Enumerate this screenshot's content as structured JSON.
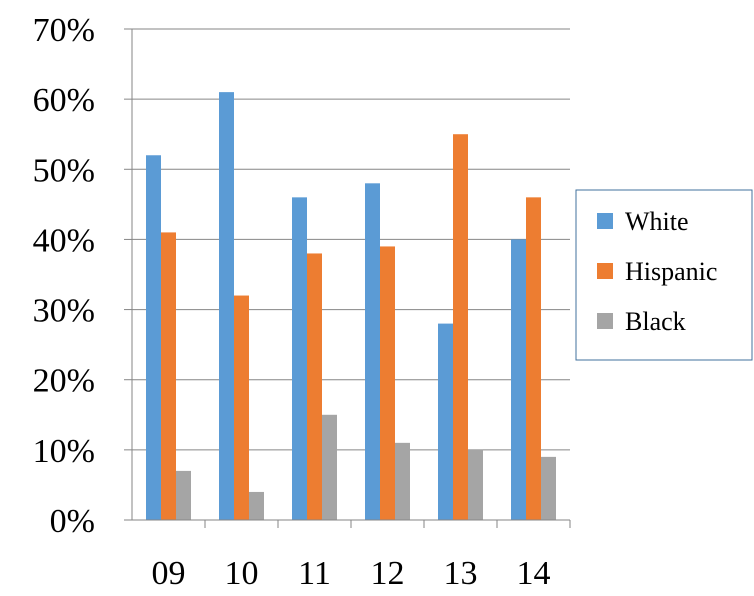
{
  "chart_data": {
    "type": "bar",
    "title": "",
    "xlabel": "",
    "ylabel": "",
    "categories": [
      "09",
      "10",
      "11",
      "12",
      "13",
      "14"
    ],
    "series": [
      {
        "name": "White",
        "values": [
          52,
          61,
          46,
          48,
          28,
          40
        ],
        "color": "#5B9BD5"
      },
      {
        "name": "Hispanic",
        "values": [
          41,
          32,
          38,
          39,
          55,
          46
        ],
        "color": "#ED7D31"
      },
      {
        "name": "Black",
        "values": [
          7,
          4,
          15,
          11,
          10,
          9
        ],
        "color": "#A5A5A5"
      }
    ],
    "ylim": [
      0,
      70
    ],
    "yticks": [
      0,
      10,
      20,
      30,
      40,
      50,
      60,
      70
    ],
    "ytick_labels": [
      "0%",
      "10%",
      "20%",
      "30%",
      "40%",
      "50%",
      "60%",
      "70%"
    ],
    "y_unit": "%",
    "grid": true,
    "legend_position": "right",
    "colors": {
      "grid": "#868686",
      "axis": "#868686",
      "legend_border": "#41719C"
    }
  }
}
